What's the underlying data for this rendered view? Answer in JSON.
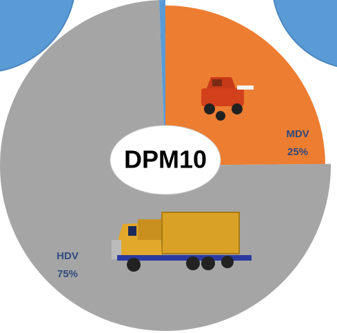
{
  "chart_data": {
    "type": "pie",
    "title": "DPM10",
    "categories": [
      "MDV",
      "HDV",
      null
    ],
    "values": [
      25,
      75,
      0.6
    ],
    "value_labels": [
      "25%",
      "75%",
      null
    ],
    "colors": [
      "#ED7D31",
      "#A5A5A5",
      "#5B9BD5"
    ]
  }
}
